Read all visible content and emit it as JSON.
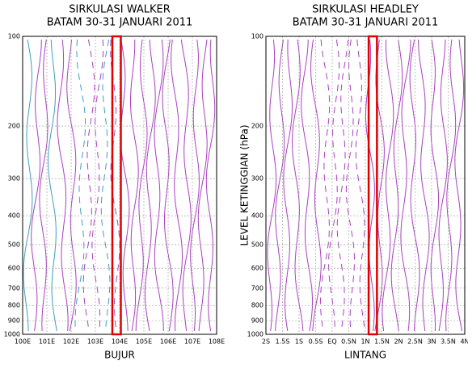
{
  "chart_data": [
    {
      "type": "streamline",
      "title": "SIRKULASI WALKER",
      "subtitle": "BATAM 30-31 JANUARI 2011",
      "xlabel": "BUJUR",
      "xlim": [
        100,
        108
      ],
      "xticks": [
        {
          "value": 100,
          "label": "100E"
        },
        {
          "value": 101,
          "label": "101E"
        },
        {
          "value": 102,
          "label": "102E"
        },
        {
          "value": 103,
          "label": "103E"
        },
        {
          "value": 104,
          "label": "104E"
        },
        {
          "value": 105,
          "label": "105E"
        },
        {
          "value": 106,
          "label": "106E"
        },
        {
          "value": 107,
          "label": "107E"
        },
        {
          "value": 108,
          "label": "108E"
        }
      ],
      "ylim": [
        1000,
        100
      ],
      "yticks": [
        100,
        200,
        300,
        400,
        500,
        600,
        700,
        800,
        900,
        1000
      ],
      "log_y": true,
      "grid": true,
      "highlight": [
        103.7,
        104.05
      ],
      "highlight_color": "#e00000",
      "color": "#9b1fb5"
    },
    {
      "type": "streamline",
      "title": "SIRKULASI HEADLEY",
      "subtitle": "BATAM 30-31 JANUARI 2011",
      "xlabel": "LINTANG",
      "ylabel": "LEVEL KETINGGIAN (hPa)",
      "xlim": [
        -2,
        4
      ],
      "xticks": [
        {
          "value": -2,
          "label": "2S"
        },
        {
          "value": -1.5,
          "label": "1.5S"
        },
        {
          "value": -1,
          "label": "1S"
        },
        {
          "value": -0.5,
          "label": "0.5S"
        },
        {
          "value": 0,
          "label": "EQ"
        },
        {
          "value": 0.5,
          "label": "0.5N"
        },
        {
          "value": 1,
          "label": "1N"
        },
        {
          "value": 1.5,
          "label": "1.5N"
        },
        {
          "value": 2,
          "label": "2N"
        },
        {
          "value": 2.5,
          "label": "2.5N"
        },
        {
          "value": 3,
          "label": "3N"
        },
        {
          "value": 3.5,
          "label": "3.5N"
        },
        {
          "value": 4,
          "label": "4N"
        }
      ],
      "ylim": [
        1000,
        100
      ],
      "yticks": [
        100,
        200,
        300,
        400,
        500,
        600,
        700,
        800,
        900,
        1000
      ],
      "log_y": true,
      "grid": true,
      "highlight": [
        1.1,
        1.35
      ],
      "highlight_color": "#e00000",
      "color": "#9b1fb5"
    }
  ]
}
